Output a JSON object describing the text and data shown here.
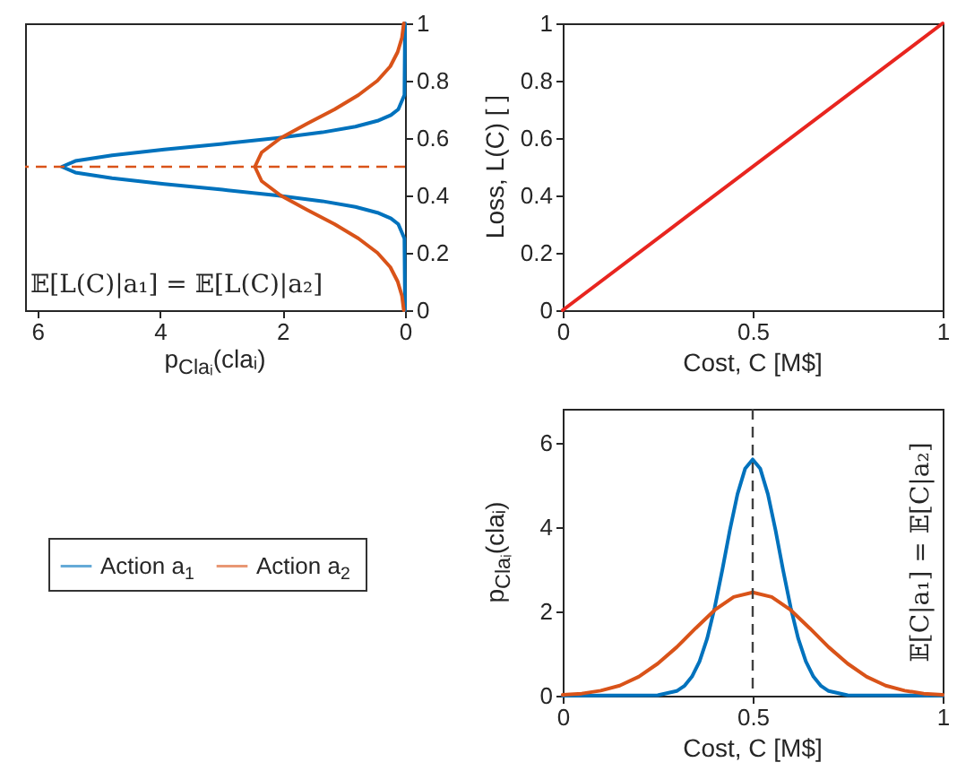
{
  "chart_data": [
    {
      "type": "line",
      "xlabel": "p$_{Claᵢ}$(claᵢ)",
      "xlim": [
        6.2,
        0
      ],
      "xticks": [
        6,
        4,
        2,
        0
      ],
      "ylim": [
        0,
        1
      ],
      "yticks": [
        0,
        0.2,
        0.4,
        0.6,
        0.8,
        1
      ],
      "grid": false,
      "legend": false,
      "annotations": [
        "𝔼[L(C)|a₁] = 𝔼[L(C)|a₂]"
      ],
      "ref_lines": [
        {
          "axis": "y",
          "value": 0.5,
          "color": "#d95319",
          "line_style": "dashed"
        }
      ],
      "series": [
        {
          "color": "#0072bd",
          "x": [
            0,
            0.01,
            0.11,
            0.23,
            0.45,
            0.81,
            1.35,
            2.09,
            2.98,
            3.93,
            4.78,
            5.38,
            5.6,
            5.38,
            4.78,
            3.93,
            2.98,
            2.09,
            1.35,
            0.81,
            0.45,
            0.23,
            0.11,
            0.01,
            0
          ],
          "values": [
            0,
            0.25,
            0.3,
            0.32,
            0.34,
            0.36,
            0.38,
            0.4,
            0.42,
            0.44,
            0.46,
            0.48,
            0.5,
            0.52,
            0.54,
            0.56,
            0.58,
            0.6,
            0.62,
            0.64,
            0.66,
            0.68,
            0.7,
            0.75,
            1
          ]
        },
        {
          "color": "#d95319",
          "x": [
            0.02,
            0.05,
            0.12,
            0.24,
            0.45,
            0.76,
            1.15,
            1.6,
            2.03,
            2.34,
            2.45,
            2.34,
            2.03,
            1.6,
            1.15,
            0.76,
            0.45,
            0.24,
            0.12,
            0.05,
            0.02
          ],
          "values": [
            0,
            0.05,
            0.1,
            0.15,
            0.2,
            0.25,
            0.3,
            0.35,
            0.4,
            0.45,
            0.5,
            0.55,
            0.6,
            0.65,
            0.7,
            0.75,
            0.8,
            0.85,
            0.9,
            0.95,
            1
          ]
        }
      ]
    },
    {
      "type": "line",
      "xlabel": "Cost, C [M$]",
      "ylabel": "Loss, L(C) [ ]",
      "xlim": [
        0,
        1
      ],
      "xticks": [
        0,
        0.5,
        1
      ],
      "ylim": [
        0,
        1
      ],
      "yticks": [
        0,
        0.2,
        0.4,
        0.6,
        0.8,
        1
      ],
      "grid": false,
      "legend": false,
      "series": [
        {
          "color": "#e8251f",
          "x": [
            0,
            1
          ],
          "values": [
            0,
            1
          ]
        }
      ]
    },
    {
      "type": "line",
      "xlabel": "Cost, C [M$]",
      "ylabel": "p$_{Claᵢ}$(claᵢ)",
      "xlim": [
        0,
        1
      ],
      "xticks": [
        0,
        0.5,
        1
      ],
      "ylim": [
        0,
        6.8
      ],
      "yticks": [
        0,
        2,
        4,
        6
      ],
      "grid": false,
      "legend": "left",
      "annotations": [
        "𝔼[C|a₁] = 𝔼[C|a₂]"
      ],
      "ref_lines": [
        {
          "axis": "x",
          "value": 0.5,
          "color": "#404040",
          "line_style": "dashed"
        }
      ],
      "series": [
        {
          "name": "Action a$_{1}$",
          "color": "#0072bd",
          "x": [
            0,
            0.25,
            0.3,
            0.32,
            0.34,
            0.36,
            0.38,
            0.4,
            0.42,
            0.44,
            0.46,
            0.48,
            0.5,
            0.52,
            0.54,
            0.56,
            0.58,
            0.6,
            0.62,
            0.64,
            0.66,
            0.68,
            0.7,
            0.75,
            1
          ],
          "values": [
            0,
            0.01,
            0.11,
            0.23,
            0.45,
            0.81,
            1.35,
            2.09,
            2.98,
            3.93,
            4.78,
            5.38,
            5.6,
            5.38,
            4.78,
            3.93,
            2.98,
            2.09,
            1.35,
            0.81,
            0.45,
            0.23,
            0.11,
            0.01,
            0
          ]
        },
        {
          "name": "Action a$_{2}$",
          "color": "#d95319",
          "x": [
            0,
            0.05,
            0.1,
            0.15,
            0.2,
            0.25,
            0.3,
            0.35,
            0.4,
            0.45,
            0.5,
            0.55,
            0.6,
            0.65,
            0.7,
            0.75,
            0.8,
            0.85,
            0.9,
            0.95,
            1
          ],
          "values": [
            0.02,
            0.05,
            0.12,
            0.24,
            0.45,
            0.76,
            1.15,
            1.6,
            2.03,
            2.34,
            2.45,
            2.34,
            2.03,
            1.6,
            1.15,
            0.76,
            0.45,
            0.24,
            0.12,
            0.05,
            0.02
          ]
        }
      ]
    }
  ]
}
